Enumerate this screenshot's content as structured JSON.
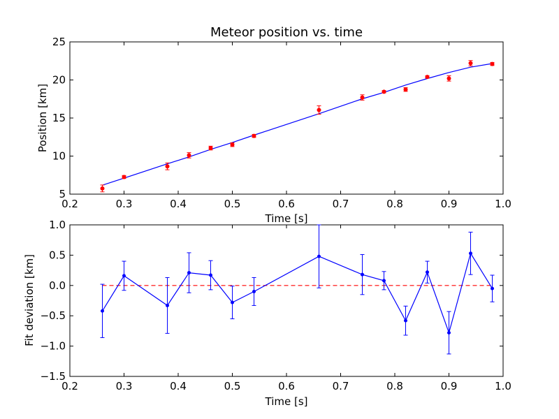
{
  "chart_data": [
    {
      "type": "scatter",
      "title": "Meteor position vs. time",
      "xlabel": "Time [s]",
      "ylabel": "Position [km]",
      "xlim": [
        0.2,
        1.0
      ],
      "ylim": [
        5,
        25
      ],
      "x_ticks": [
        "0.2",
        "0.3",
        "0.4",
        "0.5",
        "0.6",
        "0.7",
        "0.8",
        "0.9",
        "1.0"
      ],
      "y_ticks": [
        "5",
        "10",
        "15",
        "20",
        "25"
      ],
      "grid": false,
      "series": [
        {
          "kind": "errorbar-points",
          "color": "#ff0000",
          "x": [
            0.26,
            0.3,
            0.38,
            0.42,
            0.46,
            0.5,
            0.54,
            0.66,
            0.74,
            0.78,
            0.82,
            0.86,
            0.9,
            0.94,
            0.98
          ],
          "y": [
            5.75,
            7.25,
            8.65,
            10.1,
            11.05,
            11.5,
            12.65,
            16.05,
            17.7,
            18.45,
            18.75,
            20.4,
            20.2,
            22.2,
            22.1
          ],
          "yerr": [
            0.45,
            0.2,
            0.45,
            0.35,
            0.25,
            0.25,
            0.2,
            0.55,
            0.35,
            0.15,
            0.25,
            0.15,
            0.35,
            0.35,
            0.2
          ]
        },
        {
          "kind": "fit-line",
          "color": "#0000ff",
          "x": [
            0.26,
            0.3,
            0.38,
            0.42,
            0.46,
            0.5,
            0.54,
            0.66,
            0.74,
            0.78,
            0.82,
            0.86,
            0.9,
            0.94,
            0.98
          ],
          "y": [
            6.17,
            7.1,
            8.98,
            9.89,
            10.88,
            11.78,
            12.75,
            15.57,
            17.52,
            18.37,
            19.33,
            20.18,
            20.98,
            21.68,
            22.16
          ]
        }
      ]
    },
    {
      "type": "line",
      "xlabel": "Time [s]",
      "ylabel": "Fit deviation [km]",
      "xlim": [
        0.2,
        1.0
      ],
      "ylim": [
        -1.5,
        1.0
      ],
      "x_ticks": [
        "0.2",
        "0.3",
        "0.4",
        "0.5",
        "0.6",
        "0.7",
        "0.8",
        "0.9",
        "1.0"
      ],
      "y_ticks": [
        "−1.5",
        "−1.0",
        "−0.5",
        "0.0",
        "0.5",
        "1.0"
      ],
      "grid": false,
      "reference_line": {
        "y": 0.0,
        "color": "#ff0000",
        "style": "dashed"
      },
      "series": [
        {
          "color": "#0000ff",
          "x": [
            0.26,
            0.3,
            0.38,
            0.42,
            0.46,
            0.5,
            0.54,
            0.66,
            0.74,
            0.78,
            0.82,
            0.86,
            0.9,
            0.94,
            0.98
          ],
          "y": [
            -0.42,
            0.16,
            -0.33,
            0.21,
            0.17,
            -0.28,
            -0.1,
            0.48,
            0.18,
            0.08,
            -0.58,
            0.22,
            -0.78,
            0.53,
            -0.05
          ],
          "yerr": [
            0.44,
            0.24,
            0.46,
            0.33,
            0.24,
            0.27,
            0.23,
            0.52,
            0.33,
            0.15,
            0.24,
            0.18,
            0.35,
            0.35,
            0.22
          ]
        }
      ]
    }
  ]
}
